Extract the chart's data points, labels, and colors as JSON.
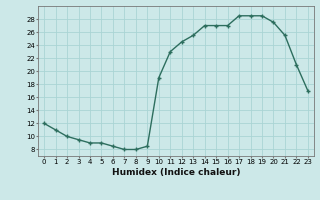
{
  "x": [
    0,
    1,
    2,
    3,
    4,
    5,
    6,
    7,
    8,
    9,
    10,
    11,
    12,
    13,
    14,
    15,
    16,
    17,
    18,
    19,
    20,
    21,
    22,
    23
  ],
  "y": [
    12,
    11,
    10,
    9.5,
    9,
    9,
    8.5,
    8,
    8,
    8.5,
    19,
    23,
    24.5,
    25.5,
    27,
    27,
    27,
    28.5,
    28.5,
    28.5,
    27.5,
    25.5,
    21,
    17
  ],
  "line_color": "#2d6e5e",
  "bg_color": "#cce8e8",
  "grid_color": "#aad4d4",
  "xlabel": "Humidex (Indice chaleur)",
  "xlim": [
    -0.5,
    23.5
  ],
  "ylim": [
    7,
    30
  ],
  "yticks": [
    8,
    10,
    12,
    14,
    16,
    18,
    20,
    22,
    24,
    26,
    28
  ],
  "xticks": [
    0,
    1,
    2,
    3,
    4,
    5,
    6,
    7,
    8,
    9,
    10,
    11,
    12,
    13,
    14,
    15,
    16,
    17,
    18,
    19,
    20,
    21,
    22,
    23
  ],
  "tick_fontsize": 5.0,
  "xlabel_fontsize": 6.5
}
